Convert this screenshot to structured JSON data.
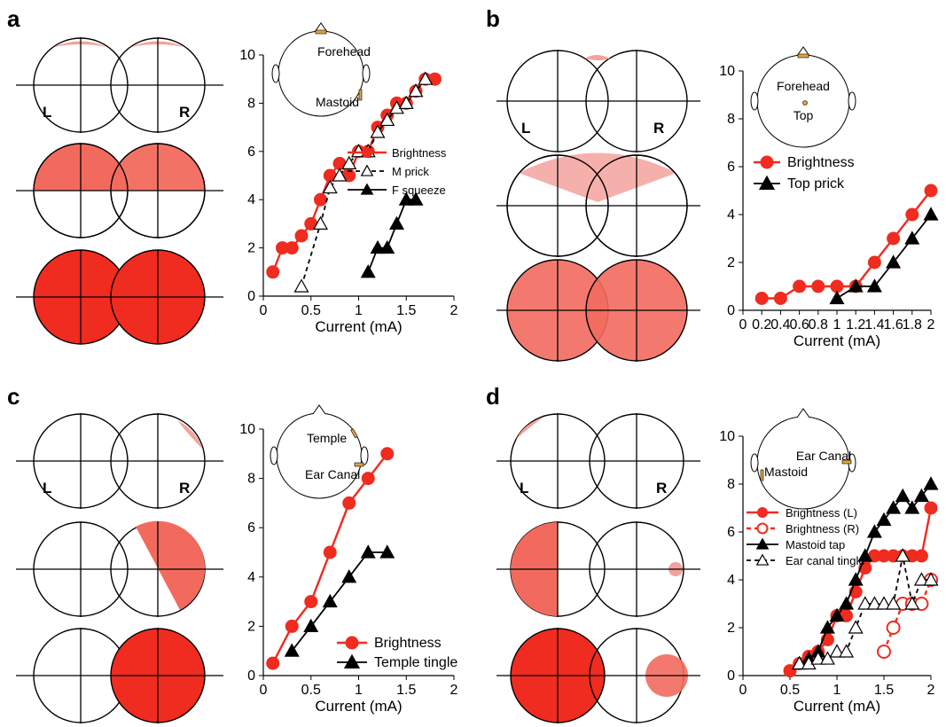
{
  "colors": {
    "red": "#f02b1f",
    "black": "#000000",
    "light_red": "#f4a29c",
    "mid_red": "#f26a5e",
    "electrode": "#e3a33b"
  },
  "x_axis_label": "Current (mA)",
  "side_labels": {
    "left": "L",
    "right": "R"
  },
  "chart_data": [
    {
      "panel": "a",
      "type": "line",
      "xlabel": "Current (mA)",
      "ylabel": "",
      "xlim": [
        0,
        2
      ],
      "ylim": [
        0,
        10
      ],
      "xticks": [
        "0",
        "0.5",
        "1",
        "1.5",
        "2"
      ],
      "yticks": [
        "0",
        "2",
        "4",
        "6",
        "8",
        "10"
      ],
      "head_labels": [
        "Forehead",
        "Mastoid"
      ],
      "legend": {
        "position": "center-right",
        "entries": [
          "Brightness",
          "M prick",
          "F squeeze"
        ]
      },
      "series": [
        {
          "name": "Brightness",
          "color": "#f02b1f",
          "marker": "circle",
          "dashed": false,
          "hollow": false,
          "points": [
            [
              0.1,
              1
            ],
            [
              0.2,
              2
            ],
            [
              0.3,
              2
            ],
            [
              0.4,
              2.5
            ],
            [
              0.5,
              3
            ],
            [
              0.6,
              4
            ],
            [
              0.7,
              5
            ],
            [
              0.8,
              5.5
            ],
            [
              0.9,
              5
            ],
            [
              1.0,
              6
            ],
            [
              1.1,
              6
            ],
            [
              1.2,
              7
            ],
            [
              1.3,
              7.5
            ],
            [
              1.4,
              8
            ],
            [
              1.5,
              8
            ],
            [
              1.6,
              8.5
            ],
            [
              1.7,
              9
            ],
            [
              1.8,
              9
            ]
          ]
        },
        {
          "name": "M prick",
          "color": "#000000",
          "marker": "triangle",
          "dashed": true,
          "hollow": true,
          "points": [
            [
              0.4,
              0.4
            ],
            [
              0.6,
              3
            ],
            [
              0.7,
              4.5
            ],
            [
              0.8,
              5
            ],
            [
              0.9,
              5.5
            ],
            [
              1.0,
              6
            ],
            [
              1.1,
              6
            ],
            [
              1.2,
              6.8
            ],
            [
              1.3,
              7.3
            ],
            [
              1.4,
              7.8
            ],
            [
              1.5,
              8
            ],
            [
              1.6,
              8.5
            ],
            [
              1.7,
              9
            ]
          ]
        },
        {
          "name": "F squeeze",
          "color": "#000000",
          "marker": "triangle",
          "dashed": false,
          "hollow": false,
          "points": [
            [
              1.1,
              1
            ],
            [
              1.2,
              2
            ],
            [
              1.3,
              2
            ],
            [
              1.4,
              3
            ],
            [
              1.5,
              4
            ],
            [
              1.6,
              4
            ]
          ]
        }
      ]
    },
    {
      "panel": "b",
      "type": "line",
      "xlabel": "Current (mA)",
      "ylabel": "",
      "xlim": [
        0,
        2
      ],
      "ylim": [
        0,
        10
      ],
      "xticks": [
        "0",
        "0.2",
        "0.4",
        "0.6",
        "0.8",
        "1",
        "1.2",
        "1.4",
        "1.6",
        "1.8",
        "2"
      ],
      "yticks": [
        "0",
        "2",
        "4",
        "6",
        "8",
        "10"
      ],
      "head_labels": [
        "Forehead",
        "Top"
      ],
      "legend": {
        "position": "top-left",
        "entries": [
          "Brightness",
          "Top prick"
        ]
      },
      "series": [
        {
          "name": "Brightness",
          "color": "#f02b1f",
          "marker": "circle",
          "dashed": false,
          "hollow": false,
          "points": [
            [
              0.2,
              0.5
            ],
            [
              0.4,
              0.5
            ],
            [
              0.6,
              1
            ],
            [
              0.8,
              1
            ],
            [
              1.0,
              1
            ],
            [
              1.2,
              1
            ],
            [
              1.4,
              2
            ],
            [
              1.6,
              3
            ],
            [
              1.8,
              4
            ],
            [
              2.0,
              5
            ]
          ]
        },
        {
          "name": "Top prick",
          "color": "#000000",
          "marker": "triangle",
          "dashed": false,
          "hollow": false,
          "points": [
            [
              1.0,
              0.5
            ],
            [
              1.2,
              1
            ],
            [
              1.4,
              1
            ],
            [
              1.6,
              2
            ],
            [
              1.8,
              3
            ],
            [
              2.0,
              4
            ]
          ]
        }
      ]
    },
    {
      "panel": "c",
      "type": "line",
      "xlabel": "Current (mA)",
      "ylabel": "",
      "xlim": [
        0,
        2
      ],
      "ylim": [
        0,
        10
      ],
      "xticks": [
        "0",
        "0.5",
        "1",
        "1.5",
        "2"
      ],
      "yticks": [
        "0",
        "2",
        "4",
        "6",
        "8",
        "10"
      ],
      "head_labels": [
        "Temple",
        "Ear Canal"
      ],
      "legend": {
        "position": "bottom-right",
        "entries": [
          "Brightness",
          "Temple tingle"
        ]
      },
      "series": [
        {
          "name": "Brightness",
          "color": "#f02b1f",
          "marker": "circle",
          "dashed": false,
          "hollow": false,
          "points": [
            [
              0.1,
              0.5
            ],
            [
              0.3,
              2
            ],
            [
              0.5,
              3
            ],
            [
              0.7,
              5
            ],
            [
              0.9,
              7
            ],
            [
              1.1,
              8
            ],
            [
              1.3,
              9
            ]
          ]
        },
        {
          "name": "Temple tingle",
          "color": "#000000",
          "marker": "triangle",
          "dashed": false,
          "hollow": false,
          "points": [
            [
              0.3,
              1
            ],
            [
              0.5,
              2
            ],
            [
              0.7,
              3
            ],
            [
              0.9,
              4
            ],
            [
              1.1,
              5
            ],
            [
              1.3,
              5
            ]
          ]
        }
      ]
    },
    {
      "panel": "d",
      "type": "line",
      "xlabel": "Current (mA)",
      "ylabel": "",
      "xlim": [
        0,
        2
      ],
      "ylim": [
        0,
        10
      ],
      "xticks": [
        "0",
        "0.5",
        "1",
        "1.5",
        "2"
      ],
      "yticks": [
        "0",
        "2",
        "4",
        "6",
        "8",
        "10"
      ],
      "head_labels": [
        "Ear Canal",
        "Mastoid"
      ],
      "legend": {
        "position": "center-left",
        "entries": [
          "Brightness (L)",
          "Brightness (R)",
          "Mastoid tap",
          "Ear canal tingle"
        ]
      },
      "series": [
        {
          "name": "Brightness (L)",
          "color": "#f02b1f",
          "marker": "circle",
          "dashed": false,
          "hollow": false,
          "points": [
            [
              0.5,
              0.2
            ],
            [
              0.6,
              0.5
            ],
            [
              0.7,
              0.8
            ],
            [
              0.8,
              1
            ],
            [
              0.9,
              1.5
            ],
            [
              1.0,
              2.5
            ],
            [
              1.1,
              2.5
            ],
            [
              1.2,
              3.5
            ],
            [
              1.3,
              4.5
            ],
            [
              1.4,
              5
            ],
            [
              1.5,
              5
            ],
            [
              1.6,
              5
            ],
            [
              1.7,
              5
            ],
            [
              1.8,
              5
            ],
            [
              1.9,
              5
            ],
            [
              2.0,
              7
            ]
          ]
        },
        {
          "name": "Brightness (R)",
          "color": "#f02b1f",
          "marker": "circle",
          "dashed": true,
          "hollow": true,
          "points": [
            [
              1.5,
              1
            ],
            [
              1.6,
              2
            ],
            [
              1.7,
              3
            ],
            [
              1.8,
              3
            ],
            [
              1.9,
              3
            ],
            [
              2.0,
              4
            ]
          ]
        },
        {
          "name": "Mastoid tap",
          "color": "#000000",
          "marker": "triangle",
          "dashed": false,
          "hollow": false,
          "points": [
            [
              0.6,
              0.5
            ],
            [
              0.7,
              0.7
            ],
            [
              0.8,
              1
            ],
            [
              0.9,
              2
            ],
            [
              1.0,
              2.5
            ],
            [
              1.1,
              3
            ],
            [
              1.2,
              4
            ],
            [
              1.3,
              5
            ],
            [
              1.4,
              6
            ],
            [
              1.5,
              6.5
            ],
            [
              1.6,
              7
            ],
            [
              1.7,
              7.5
            ],
            [
              1.8,
              7
            ],
            [
              1.9,
              7.5
            ],
            [
              2.0,
              8
            ]
          ]
        },
        {
          "name": "Ear canal tingle",
          "color": "#000000",
          "marker": "triangle",
          "dashed": true,
          "hollow": true,
          "points": [
            [
              0.6,
              0.5
            ],
            [
              0.7,
              0.5
            ],
            [
              0.8,
              0.7
            ],
            [
              0.9,
              0.7
            ],
            [
              1.0,
              1
            ],
            [
              1.1,
              1
            ],
            [
              1.2,
              2
            ],
            [
              1.3,
              3
            ],
            [
              1.4,
              3
            ],
            [
              1.5,
              3
            ],
            [
              1.6,
              3
            ],
            [
              1.7,
              5
            ],
            [
              1.8,
              3
            ],
            [
              1.9,
              4
            ],
            [
              2.0,
              4
            ]
          ]
        }
      ]
    }
  ]
}
